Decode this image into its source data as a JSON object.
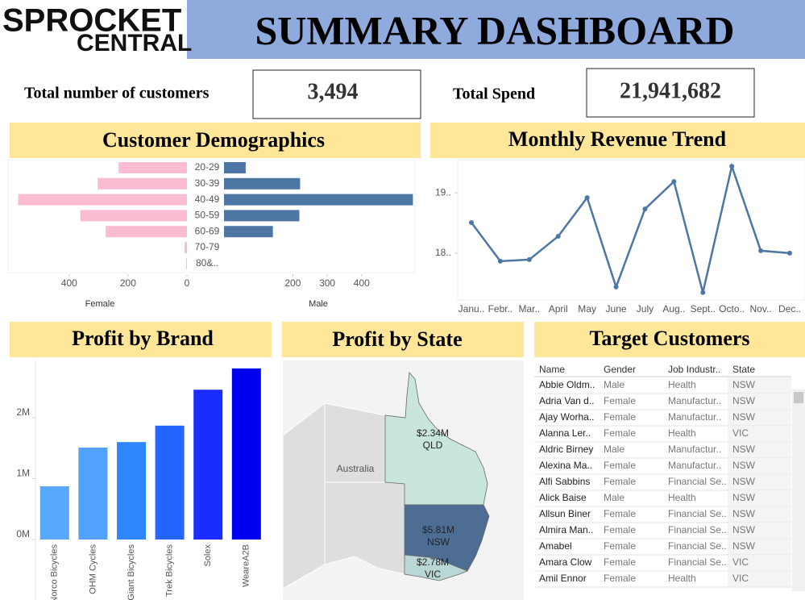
{
  "header": {
    "logo_line1": "SPROCKET",
    "logo_line2": "CENTRAL",
    "title": "SUMMARY DASHBOARD"
  },
  "kpis": [
    {
      "label": "Total number of customers",
      "value": "3,494"
    },
    {
      "label": "Total Spend",
      "value": "21,941,682"
    }
  ],
  "chart_data": [
    {
      "type": "pyramid",
      "title": "Customer Demographics",
      "categories": [
        "20-29",
        "30-39",
        "40-49",
        "50-59",
        "60-69",
        "70-79",
        "80&.."
      ],
      "series": [
        {
          "name": "Female",
          "color": "#f9bcd3",
          "values": [
            232,
            303,
            573,
            362,
            276,
            8,
            3
          ],
          "xlim": [
            0,
            580
          ],
          "xticks": [
            0,
            200,
            400
          ]
        },
        {
          "name": "Male",
          "color": "#4e76a5",
          "values": [
            63,
            221,
            549,
            219,
            142,
            0,
            0
          ],
          "xlim": [
            0,
            555
          ],
          "xticks": [
            200,
            300,
            400
          ]
        }
      ]
    },
    {
      "type": "line",
      "title": "Monthly Revenue Trend",
      "categories": [
        "Janu..",
        "Febr..",
        "Mar..",
        "April",
        "May",
        "June",
        "July",
        "Aug..",
        "Sept..",
        "Octo..",
        "Nov..",
        "Dec.."
      ],
      "values": [
        1850700,
        1786700,
        1789300,
        1828000,
        1892000,
        1744000,
        1873300,
        1918700,
        1734700,
        1944000,
        1804000,
        1800000
      ],
      "color": "#4e76a5",
      "ylim": [
        1725000,
        1955000
      ],
      "yticks": [
        {
          "value": 1800000,
          "label": "18.."
        },
        {
          "value": 1900000,
          "label": "19.."
        }
      ]
    },
    {
      "type": "bar",
      "title": "Profit by Brand",
      "categories": [
        "Norco Bicycles",
        "OHM Cycles",
        "Giant Bicycles",
        "Trek Bicycles",
        "Solex",
        "WeareA2B"
      ],
      "values": [
        874000,
        1510000,
        1600000,
        1870000,
        2460000,
        2810000
      ],
      "colors": [
        "#58a8ff",
        "#52a2ff",
        "#2f86ff",
        "#2365ff",
        "#1a2cff",
        "#0000f0"
      ],
      "ylim": [
        0,
        2940000
      ],
      "yticks": [
        {
          "value": 0,
          "label": "0M"
        },
        {
          "value": 1000000,
          "label": "1M"
        },
        {
          "value": 2000000,
          "label": "2M"
        }
      ]
    },
    {
      "type": "map",
      "title": "Profit by State",
      "basemap_label": "Australia",
      "categories": [
        "QLD",
        "NSW",
        "VIC"
      ],
      "values": [
        2340000,
        5810000,
        2780000
      ],
      "value_labels": [
        "$2.34M",
        "$5.81M",
        "$2.78M"
      ],
      "color_range": [
        "#c8e6de",
        "#4e6d93"
      ]
    }
  ],
  "table": {
    "title": "Target Customers",
    "columns": [
      "Name",
      "Gender",
      "Job Industr..",
      "State"
    ],
    "rows": [
      [
        "Abbie Oldm..",
        "Male",
        "Health",
        "NSW"
      ],
      [
        "Adria Van d..",
        "Female",
        "Manufactur..",
        "NSW"
      ],
      [
        "Ajay Worha..",
        "Female",
        "Manufactur..",
        "NSW"
      ],
      [
        "Alanna Ler..",
        "Female",
        "Health",
        "VIC"
      ],
      [
        "Aldric Birney",
        "Male",
        "Manufactur..",
        "NSW"
      ],
      [
        "Alexina Ma..",
        "Female",
        "Manufactur..",
        "NSW"
      ],
      [
        "Alfi Sabbins",
        "Female",
        "Financial Se..",
        "NSW"
      ],
      [
        "Alick Baise",
        "Male",
        "Health",
        "NSW"
      ],
      [
        "Allsun Biner",
        "Female",
        "Financial Se..",
        "NSW"
      ],
      [
        "Almira Man..",
        "Female",
        "Financial Se..",
        "NSW"
      ],
      [
        "Amabel",
        "Female",
        "Financial Se..",
        "NSW"
      ],
      [
        "Amara Clow",
        "Female",
        "Financial Se..",
        "VIC"
      ],
      [
        "Amil Ennor",
        "Female",
        "Health",
        "VIC"
      ]
    ]
  }
}
